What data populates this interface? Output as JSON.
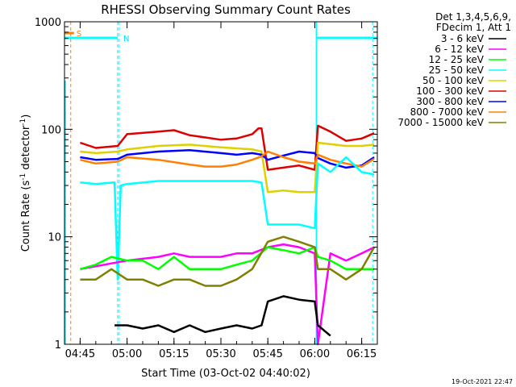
{
  "chart_data": {
    "type": "line",
    "title": "RHESSI Observing Summary Count Rates",
    "xlabel": "Start Time (03-Oct-02 04:40:02)",
    "ylabel_main": "Count Rate (s",
    "ylabel_sup1": "-1",
    "ylabel_mid": " detector",
    "ylabel_sup2": "-1",
    "ylabel_end": ")",
    "yscale": "log",
    "ylim": [
      1,
      1000
    ],
    "xlim_minutes": [
      0,
      100
    ],
    "x_ticks": [
      {
        "label": "04:45",
        "min": 5
      },
      {
        "label": "05:00",
        "min": 20
      },
      {
        "label": "05:15",
        "min": 35
      },
      {
        "label": "05:30",
        "min": 50
      },
      {
        "label": "05:45",
        "min": 65
      },
      {
        "label": "06:00",
        "min": 80
      },
      {
        "label": "06:15",
        "min": 95
      }
    ],
    "y_ticks": [
      {
        "label": "1",
        "value": 1
      },
      {
        "label": "10",
        "value": 10
      },
      {
        "label": "100",
        "value": 100
      },
      {
        "label": "1000",
        "value": 1000
      }
    ],
    "legend": {
      "header_line1": "Det 1,3,4,5,6,9,",
      "header_line2": "FDecim 1, Att 1",
      "placement": "right",
      "entries": [
        {
          "label": "3 - 6 keV",
          "color": "#000000"
        },
        {
          "label": "6 - 12 keV",
          "color": "#ff00ff"
        },
        {
          "label": "12 - 25 keV",
          "color": "#00ff00"
        },
        {
          "label": "25 - 50 keV",
          "color": "#00ffff"
        },
        {
          "label": "50 - 100 keV",
          "color": "#e0d000"
        },
        {
          "label": "100 - 300 keV",
          "color": "#dd0000"
        },
        {
          "label": "300 - 800 keV",
          "color": "#0000ff"
        },
        {
          "label": "800 - 7000 keV",
          "color": "#ff8000"
        },
        {
          "label": "7000 - 15000 keV",
          "color": "#808000"
        }
      ]
    },
    "flags": [
      {
        "label": "S",
        "color": "#ff8000",
        "min": 2
      },
      {
        "label": "N",
        "color": "#00e0ff",
        "min": 17
      }
    ],
    "night_color": "#00ffff",
    "series": [
      {
        "color": "#dd0000",
        "x": [
          5,
          10,
          17,
          20,
          30,
          35,
          40,
          50,
          55,
          60,
          62,
          63,
          65,
          70,
          75,
          80,
          81,
          85,
          90,
          95,
          99
        ],
        "y": [
          75,
          67,
          70,
          90,
          95,
          98,
          88,
          80,
          82,
          90,
          102,
          102,
          42,
          44,
          46,
          42,
          108,
          95,
          78,
          82,
          92
        ]
      },
      {
        "color": "#e0d000",
        "x": [
          5,
          10,
          17,
          20,
          30,
          40,
          50,
          60,
          63,
          65,
          70,
          75,
          80,
          81,
          90,
          95,
          99
        ],
        "y": [
          62,
          60,
          62,
          65,
          70,
          72,
          68,
          65,
          62,
          26,
          27,
          26,
          26,
          75,
          70,
          70,
          72
        ]
      },
      {
        "color": "#0000ff",
        "x": [
          5,
          10,
          17,
          20,
          30,
          40,
          50,
          55,
          60,
          63,
          65,
          70,
          75,
          80,
          81,
          85,
          90,
          95,
          99
        ],
        "y": [
          55,
          52,
          53,
          58,
          62,
          64,
          60,
          58,
          60,
          58,
          52,
          57,
          62,
          60,
          54,
          48,
          44,
          46,
          55
        ]
      },
      {
        "color": "#ff8000",
        "x": [
          5,
          10,
          17,
          20,
          30,
          40,
          45,
          50,
          55,
          60,
          63,
          65,
          70,
          75,
          80,
          81,
          85,
          90,
          95,
          99
        ],
        "y": [
          52,
          48,
          50,
          55,
          52,
          47,
          45,
          45,
          47,
          52,
          56,
          62,
          55,
          50,
          48,
          58,
          52,
          48,
          45,
          53
        ]
      },
      {
        "color": "#00ffff",
        "x": [
          5,
          10,
          16,
          17,
          18,
          20,
          30,
          40,
          50,
          60,
          63,
          65,
          70,
          75,
          80,
          81,
          85,
          90,
          95,
          99
        ],
        "y": [
          32,
          31,
          32,
          4,
          30,
          31,
          33,
          33,
          33,
          33,
          32,
          13,
          13,
          13,
          12,
          48,
          40,
          55,
          40,
          38
        ]
      },
      {
        "color": "#ff00ff",
        "x": [
          5,
          20,
          30,
          35,
          40,
          50,
          55,
          60,
          65,
          70,
          75,
          80,
          81,
          85,
          90,
          95,
          99
        ],
        "y": [
          5,
          6,
          6.5,
          7,
          6.5,
          6.5,
          7,
          7,
          8,
          8.5,
          8,
          7,
          1,
          7,
          6,
          7,
          8
        ]
      },
      {
        "color": "#00ff00",
        "x": [
          5,
          10,
          15,
          20,
          25,
          30,
          35,
          40,
          45,
          50,
          55,
          60,
          65,
          70,
          75,
          80,
          81,
          85,
          90,
          95,
          99
        ],
        "y": [
          5,
          5.5,
          6.5,
          6,
          6,
          5,
          6.5,
          5,
          5,
          5,
          5.5,
          6,
          8,
          7.5,
          7,
          8,
          6.5,
          6,
          5,
          5,
          5
        ]
      },
      {
        "color": "#808000",
        "x": [
          5,
          10,
          15,
          20,
          25,
          30,
          35,
          40,
          45,
          50,
          55,
          60,
          65,
          70,
          75,
          80,
          81,
          85,
          90,
          95,
          99
        ],
        "y": [
          4,
          4,
          5,
          4,
          4,
          3.5,
          4,
          4,
          3.5,
          3.5,
          4,
          5,
          9,
          10,
          9,
          8,
          5,
          5,
          4,
          5,
          8
        ]
      },
      {
        "color": "#000000",
        "x": [
          16,
          20,
          25,
          30,
          35,
          40,
          45,
          50,
          55,
          60,
          63,
          65,
          70,
          75,
          80,
          81,
          85
        ],
        "y": [
          1.5,
          1.5,
          1.4,
          1.5,
          1.3,
          1.5,
          1.3,
          1.4,
          1.5,
          1.4,
          1.5,
          2.5,
          2.8,
          2.6,
          2.5,
          1.5,
          1.2
        ]
      }
    ]
  },
  "timestamp": "19-Oct-2021 22:47"
}
